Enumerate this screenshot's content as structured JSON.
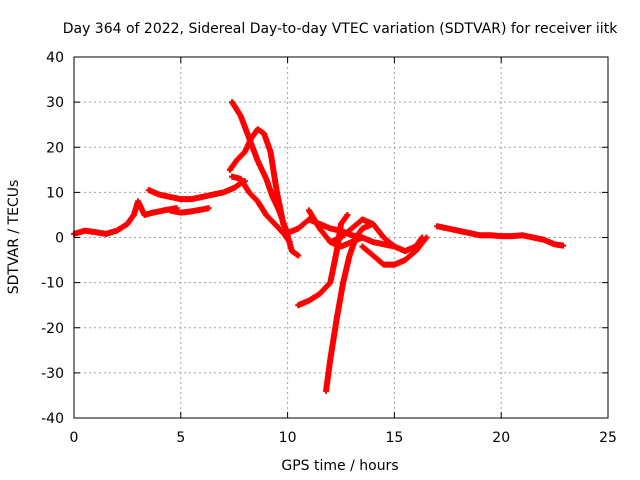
{
  "chart_data": {
    "type": "scatter",
    "title": "Day 364 of 2022, Sidereal Day-to-day VTEC variation (SDTVAR) for receiver iitk",
    "xlabel": "GPS time / hours",
    "ylabel": "SDTVAR / TECUs",
    "xlim": [
      0,
      25
    ],
    "ylim": [
      -40,
      40
    ],
    "xticks": [
      "0",
      "5",
      "10",
      "15",
      "20",
      "25"
    ],
    "yticks": [
      "-40",
      "-30",
      "-20",
      "-10",
      "0",
      "10",
      "20",
      "30",
      "40"
    ],
    "grid": true,
    "marker": "plus",
    "color": "#ff0000",
    "series": [
      {
        "x": [
          0.0,
          0.5,
          1.0,
          1.5,
          2.0,
          2.5,
          2.8,
          3.0,
          3.3,
          3.7,
          4.2,
          4.8
        ],
        "y": [
          0.8,
          1.5,
          1.2,
          0.8,
          1.5,
          3.0,
          5.0,
          8.0,
          5.0,
          5.5,
          6.0,
          6.5
        ]
      },
      {
        "x": [
          3.5,
          4.0,
          4.5,
          5.0,
          5.5,
          6.0,
          6.5,
          7.0,
          7.5,
          7.8,
          8.0
        ],
        "y": [
          10.5,
          9.5,
          9.0,
          8.5,
          8.5,
          9.0,
          9.5,
          10.0,
          11.0,
          12.0,
          12.5
        ]
      },
      {
        "x": [
          4.5,
          5.0,
          5.5,
          6.0,
          6.3
        ],
        "y": [
          6.0,
          5.5,
          5.8,
          6.2,
          6.5
        ]
      },
      {
        "x": [
          7.4,
          7.8,
          8.2,
          8.6,
          9.0,
          9.3,
          9.6,
          9.9,
          10.2,
          10.5
        ],
        "y": [
          30.0,
          27.0,
          22.0,
          17.0,
          13.0,
          9.0,
          6.0,
          2.0,
          -3.0,
          -4.0
        ]
      },
      {
        "x": [
          7.3,
          7.6,
          8.0,
          8.3,
          8.6,
          8.9,
          9.2,
          9.5,
          9.8,
          10.0
        ],
        "y": [
          15.0,
          17.0,
          19.0,
          22.0,
          24.0,
          23.0,
          19.0,
          10.0,
          3.0,
          1.0
        ]
      },
      {
        "x": [
          7.4,
          7.8,
          8.2,
          8.6,
          9.0,
          9.4,
          9.8,
          10.1
        ],
        "y": [
          13.5,
          13.0,
          10.0,
          8.0,
          5.0,
          3.0,
          1.0,
          -1.0
        ]
      },
      {
        "x": [
          10.0,
          10.5,
          11.0,
          11.5,
          12.0,
          12.5,
          13.0,
          13.5,
          14.0,
          14.5,
          15.0
        ],
        "y": [
          1.0,
          2.0,
          4.0,
          3.0,
          2.0,
          1.5,
          0.5,
          0.0,
          -1.0,
          -1.5,
          -2.0
        ]
      },
      {
        "x": [
          10.5,
          11.0,
          11.5,
          12.0,
          12.3,
          12.5,
          12.8
        ],
        "y": [
          -15.0,
          -14.0,
          -12.5,
          -10.0,
          -3.0,
          3.0,
          5.0
        ]
      },
      {
        "x": [
          11.8,
          12.0,
          12.3,
          12.6,
          12.9,
          13.2,
          13.5,
          14.0
        ],
        "y": [
          -34.0,
          -27.0,
          -18.0,
          -10.0,
          -4.0,
          0.0,
          2.0,
          3.0
        ]
      },
      {
        "x": [
          12.0,
          12.5,
          13.0,
          13.5,
          14.0,
          14.5,
          15.0,
          15.5,
          16.0,
          16.3
        ],
        "y": [
          -1.0,
          0.0,
          2.0,
          4.0,
          3.0,
          0.0,
          -2.0,
          -3.0,
          -2.0,
          0.0
        ]
      },
      {
        "x": [
          13.5,
          14.0,
          14.5,
          15.0,
          15.5,
          16.0,
          16.5
        ],
        "y": [
          -2.0,
          -4.0,
          -6.0,
          -6.0,
          -5.0,
          -3.0,
          0.0
        ]
      },
      {
        "x": [
          11.0,
          11.5,
          12.0,
          12.5,
          13.0,
          13.5
        ],
        "y": [
          6.0,
          2.0,
          -1.0,
          -2.0,
          -1.0,
          0.0
        ]
      },
      {
        "x": [
          17.0,
          17.5,
          18.0,
          18.5,
          19.0,
          19.5,
          20.0,
          20.5,
          21.0,
          21.5,
          22.0,
          22.5,
          22.9
        ],
        "y": [
          2.5,
          2.0,
          1.5,
          1.0,
          0.5,
          0.5,
          0.3,
          0.3,
          0.5,
          0.0,
          -0.5,
          -1.5,
          -1.8
        ]
      }
    ]
  }
}
